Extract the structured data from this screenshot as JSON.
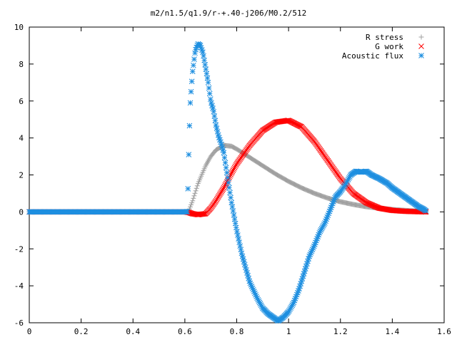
{
  "chart_data": {
    "type": "scatter",
    "title": "m2/n1.5/q1.9/r-+.40-j206/M0.2/512",
    "xlabel": "",
    "ylabel": "",
    "xlim": [
      0,
      1.6
    ],
    "ylim": [
      -6,
      10
    ],
    "x_ticks": [
      0,
      0.2,
      0.4,
      0.6,
      0.8,
      1,
      1.2,
      1.4,
      1.6
    ],
    "y_ticks": [
      -6,
      -4,
      -2,
      0,
      2,
      4,
      6,
      8,
      10
    ],
    "grid": false,
    "legend_position": "top-right",
    "series": [
      {
        "name": "R stress",
        "marker": "plus",
        "color": "#a0a0a0",
        "x": [
          0.0,
          0.1,
          0.2,
          0.3,
          0.4,
          0.5,
          0.6,
          0.615,
          0.63,
          0.65,
          0.68,
          0.7,
          0.72,
          0.75,
          0.78,
          0.8,
          0.85,
          0.9,
          0.95,
          1.0,
          1.05,
          1.1,
          1.15,
          1.2,
          1.25,
          1.3,
          1.35,
          1.4,
          1.45,
          1.5,
          1.53
        ],
        "y": [
          0,
          0,
          0,
          0,
          0,
          0,
          0,
          0.05,
          0.6,
          1.5,
          2.5,
          3.0,
          3.35,
          3.6,
          3.55,
          3.4,
          2.95,
          2.5,
          2.05,
          1.65,
          1.3,
          1.0,
          0.75,
          0.55,
          0.4,
          0.28,
          0.2,
          0.13,
          0.08,
          0.04,
          0.02
        ]
      },
      {
        "name": "G work",
        "marker": "cross",
        "color": "#ff0000",
        "x": [
          0.0,
          0.1,
          0.2,
          0.3,
          0.4,
          0.5,
          0.6,
          0.615,
          0.63,
          0.65,
          0.68,
          0.7,
          0.72,
          0.75,
          0.78,
          0.8,
          0.85,
          0.9,
          0.95,
          1.0,
          1.05,
          1.1,
          1.15,
          1.2,
          1.25,
          1.3,
          1.35,
          1.4,
          1.45,
          1.5,
          1.53
        ],
        "y": [
          0,
          0,
          0,
          0,
          0,
          0,
          0,
          -0.03,
          -0.1,
          -0.15,
          -0.1,
          0.2,
          0.6,
          1.3,
          2.1,
          2.6,
          3.6,
          4.4,
          4.85,
          4.95,
          4.6,
          3.8,
          2.8,
          1.8,
          1.0,
          0.5,
          0.2,
          0.08,
          0.03,
          0.01,
          0.0
        ]
      },
      {
        "name": "Acoustic flux",
        "marker": "star",
        "color": "#1e8fe0",
        "x": [
          0.0,
          0.1,
          0.2,
          0.3,
          0.4,
          0.5,
          0.6,
          0.61,
          0.615,
          0.62,
          0.625,
          0.63,
          0.64,
          0.65,
          0.66,
          0.67,
          0.68,
          0.69,
          0.7,
          0.71,
          0.72,
          0.73,
          0.74,
          0.75,
          0.76,
          0.78,
          0.8,
          0.82,
          0.85,
          0.88,
          0.9,
          0.92,
          0.94,
          0.96,
          0.98,
          1.0,
          1.02,
          1.04,
          1.06,
          1.08,
          1.1,
          1.12,
          1.14,
          1.16,
          1.18,
          1.2,
          1.22,
          1.24,
          1.26,
          1.28,
          1.3,
          1.32,
          1.35,
          1.38,
          1.4,
          1.42,
          1.45,
          1.48,
          1.5,
          1.52,
          1.53
        ],
        "y": [
          0,
          0,
          0,
          0,
          0,
          0,
          0,
          0.02,
          3.1,
          5.7,
          6.7,
          7.6,
          8.7,
          9.1,
          9.0,
          8.6,
          7.8,
          7.0,
          6.0,
          5.5,
          4.7,
          4.1,
          3.7,
          3.2,
          2.3,
          0.5,
          -1.0,
          -2.3,
          -3.8,
          -4.7,
          -5.2,
          -5.5,
          -5.7,
          -5.9,
          -5.7,
          -5.4,
          -4.9,
          -4.2,
          -3.3,
          -2.4,
          -1.8,
          -1.1,
          -0.6,
          0.1,
          0.8,
          1.1,
          1.5,
          2.0,
          2.2,
          2.15,
          2.2,
          2.0,
          1.8,
          1.55,
          1.3,
          1.1,
          0.8,
          0.5,
          0.3,
          0.15,
          0.05
        ]
      }
    ]
  }
}
